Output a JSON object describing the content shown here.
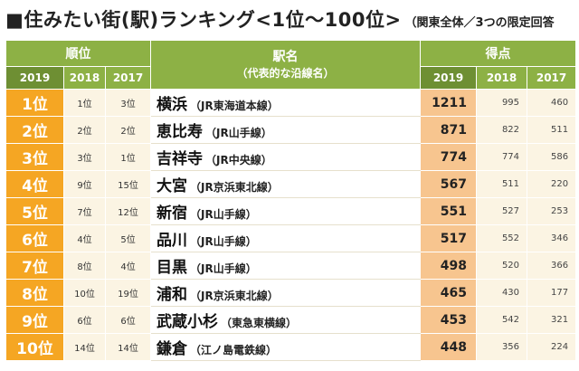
{
  "title": {
    "main": "■住みたい街(駅)ランキング<1位～100位>",
    "sub": "（関東全体／3つの限定回答"
  },
  "headers": {
    "rank_group": "順位",
    "station_title": "駅名",
    "station_sub": "（代表的な沿線名）",
    "score_group": "得点",
    "years": [
      "2019",
      "2018",
      "2017"
    ]
  },
  "rows": [
    {
      "rank2019": "1位",
      "rank2018": "1位",
      "rank2017": "3位",
      "station": "横浜",
      "line": "（JR東海道本線）",
      "score2019": "1211",
      "score2018": "995",
      "score2017": "460"
    },
    {
      "rank2019": "2位",
      "rank2018": "2位",
      "rank2017": "2位",
      "station": "恵比寿",
      "line": "（JR山手線）",
      "score2019": "871",
      "score2018": "822",
      "score2017": "511"
    },
    {
      "rank2019": "3位",
      "rank2018": "3位",
      "rank2017": "1位",
      "station": "吉祥寺",
      "line": "（JR中央線）",
      "score2019": "774",
      "score2018": "774",
      "score2017": "586"
    },
    {
      "rank2019": "4位",
      "rank2018": "9位",
      "rank2017": "15位",
      "station": "大宮",
      "line": "（JR京浜東北線）",
      "score2019": "567",
      "score2018": "511",
      "score2017": "220"
    },
    {
      "rank2019": "5位",
      "rank2018": "7位",
      "rank2017": "12位",
      "station": "新宿",
      "line": "（JR山手線）",
      "score2019": "551",
      "score2018": "527",
      "score2017": "253"
    },
    {
      "rank2019": "6位",
      "rank2018": "4位",
      "rank2017": "5位",
      "station": "品川",
      "line": "（JR山手線）",
      "score2019": "517",
      "score2018": "552",
      "score2017": "346"
    },
    {
      "rank2019": "7位",
      "rank2018": "8位",
      "rank2017": "4位",
      "station": "目黒",
      "line": "（JR山手線）",
      "score2019": "498",
      "score2018": "520",
      "score2017": "366"
    },
    {
      "rank2019": "8位",
      "rank2018": "10位",
      "rank2017": "19位",
      "station": "浦和",
      "line": "（JR京浜東北線）",
      "score2019": "465",
      "score2018": "430",
      "score2017": "177"
    },
    {
      "rank2019": "9位",
      "rank2018": "6位",
      "rank2017": "6位",
      "station": "武蔵小杉",
      "line": "（東急東横線）",
      "score2019": "453",
      "score2018": "542",
      "score2017": "321"
    },
    {
      "rank2019": "10位",
      "rank2018": "14位",
      "rank2017": "14位",
      "station": "鎌倉",
      "line": "（江ノ島電鉄線）",
      "score2019": "448",
      "score2018": "356",
      "score2017": "224"
    }
  ],
  "colors": {
    "header_green": "#8db145",
    "header_dark": "#6e8f33",
    "rank_orange": "#f5a623",
    "score_peach": "#f7c58f",
    "cell_cream": "#fbf4e3"
  }
}
